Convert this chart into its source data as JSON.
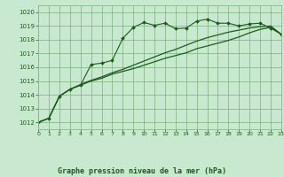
{
  "bg_color": "#c8e8d0",
  "grid_color": "#88b888",
  "line_color": "#1a5c1a",
  "marker_color": "#1a5c1a",
  "title": "Graphe pression niveau de la mer (hPa)",
  "xlim": [
    0,
    23
  ],
  "ylim": [
    1011.5,
    1020.5
  ],
  "yticks": [
    1012,
    1013,
    1014,
    1015,
    1016,
    1017,
    1018,
    1019,
    1020
  ],
  "xticks": [
    0,
    1,
    2,
    3,
    4,
    5,
    6,
    7,
    8,
    9,
    10,
    11,
    12,
    13,
    14,
    15,
    16,
    17,
    18,
    19,
    20,
    21,
    22,
    23
  ],
  "line1_x": [
    0,
    1,
    2,
    3,
    4,
    5,
    6,
    7,
    8,
    9,
    10,
    11,
    12,
    13,
    14,
    15,
    16,
    17,
    18,
    19,
    20,
    21,
    22,
    23
  ],
  "line1_y": [
    1012.0,
    1012.3,
    1013.9,
    1014.4,
    1014.7,
    1016.2,
    1016.3,
    1016.5,
    1018.1,
    1018.9,
    1019.25,
    1019.05,
    1019.2,
    1018.8,
    1018.85,
    1019.35,
    1019.5,
    1019.2,
    1019.2,
    1019.0,
    1019.15,
    1019.2,
    1018.85,
    1018.4
  ],
  "line2_x": [
    0,
    1,
    2,
    3,
    4,
    5,
    6,
    7,
    8,
    9,
    10,
    11,
    12,
    13,
    14,
    15,
    16,
    17,
    18,
    19,
    20,
    21,
    22,
    23
  ],
  "line2_y": [
    1012.0,
    1012.3,
    1013.9,
    1014.4,
    1014.7,
    1015.0,
    1015.2,
    1015.5,
    1015.7,
    1015.9,
    1016.15,
    1016.4,
    1016.65,
    1016.85,
    1017.05,
    1017.35,
    1017.55,
    1017.75,
    1017.95,
    1018.2,
    1018.5,
    1018.75,
    1018.9,
    1018.4
  ],
  "line3_x": [
    0,
    1,
    2,
    3,
    4,
    5,
    6,
    7,
    8,
    9,
    10,
    11,
    12,
    13,
    14,
    15,
    16,
    17,
    18,
    19,
    20,
    21,
    22,
    23
  ],
  "line3_y": [
    1012.0,
    1012.3,
    1013.9,
    1014.4,
    1014.75,
    1015.05,
    1015.3,
    1015.6,
    1015.85,
    1016.15,
    1016.45,
    1016.75,
    1017.05,
    1017.3,
    1017.6,
    1017.9,
    1018.15,
    1018.35,
    1018.55,
    1018.7,
    1018.85,
    1018.95,
    1019.0,
    1018.4
  ],
  "fig_width": 3.2,
  "fig_height": 2.0,
  "dpi": 100
}
